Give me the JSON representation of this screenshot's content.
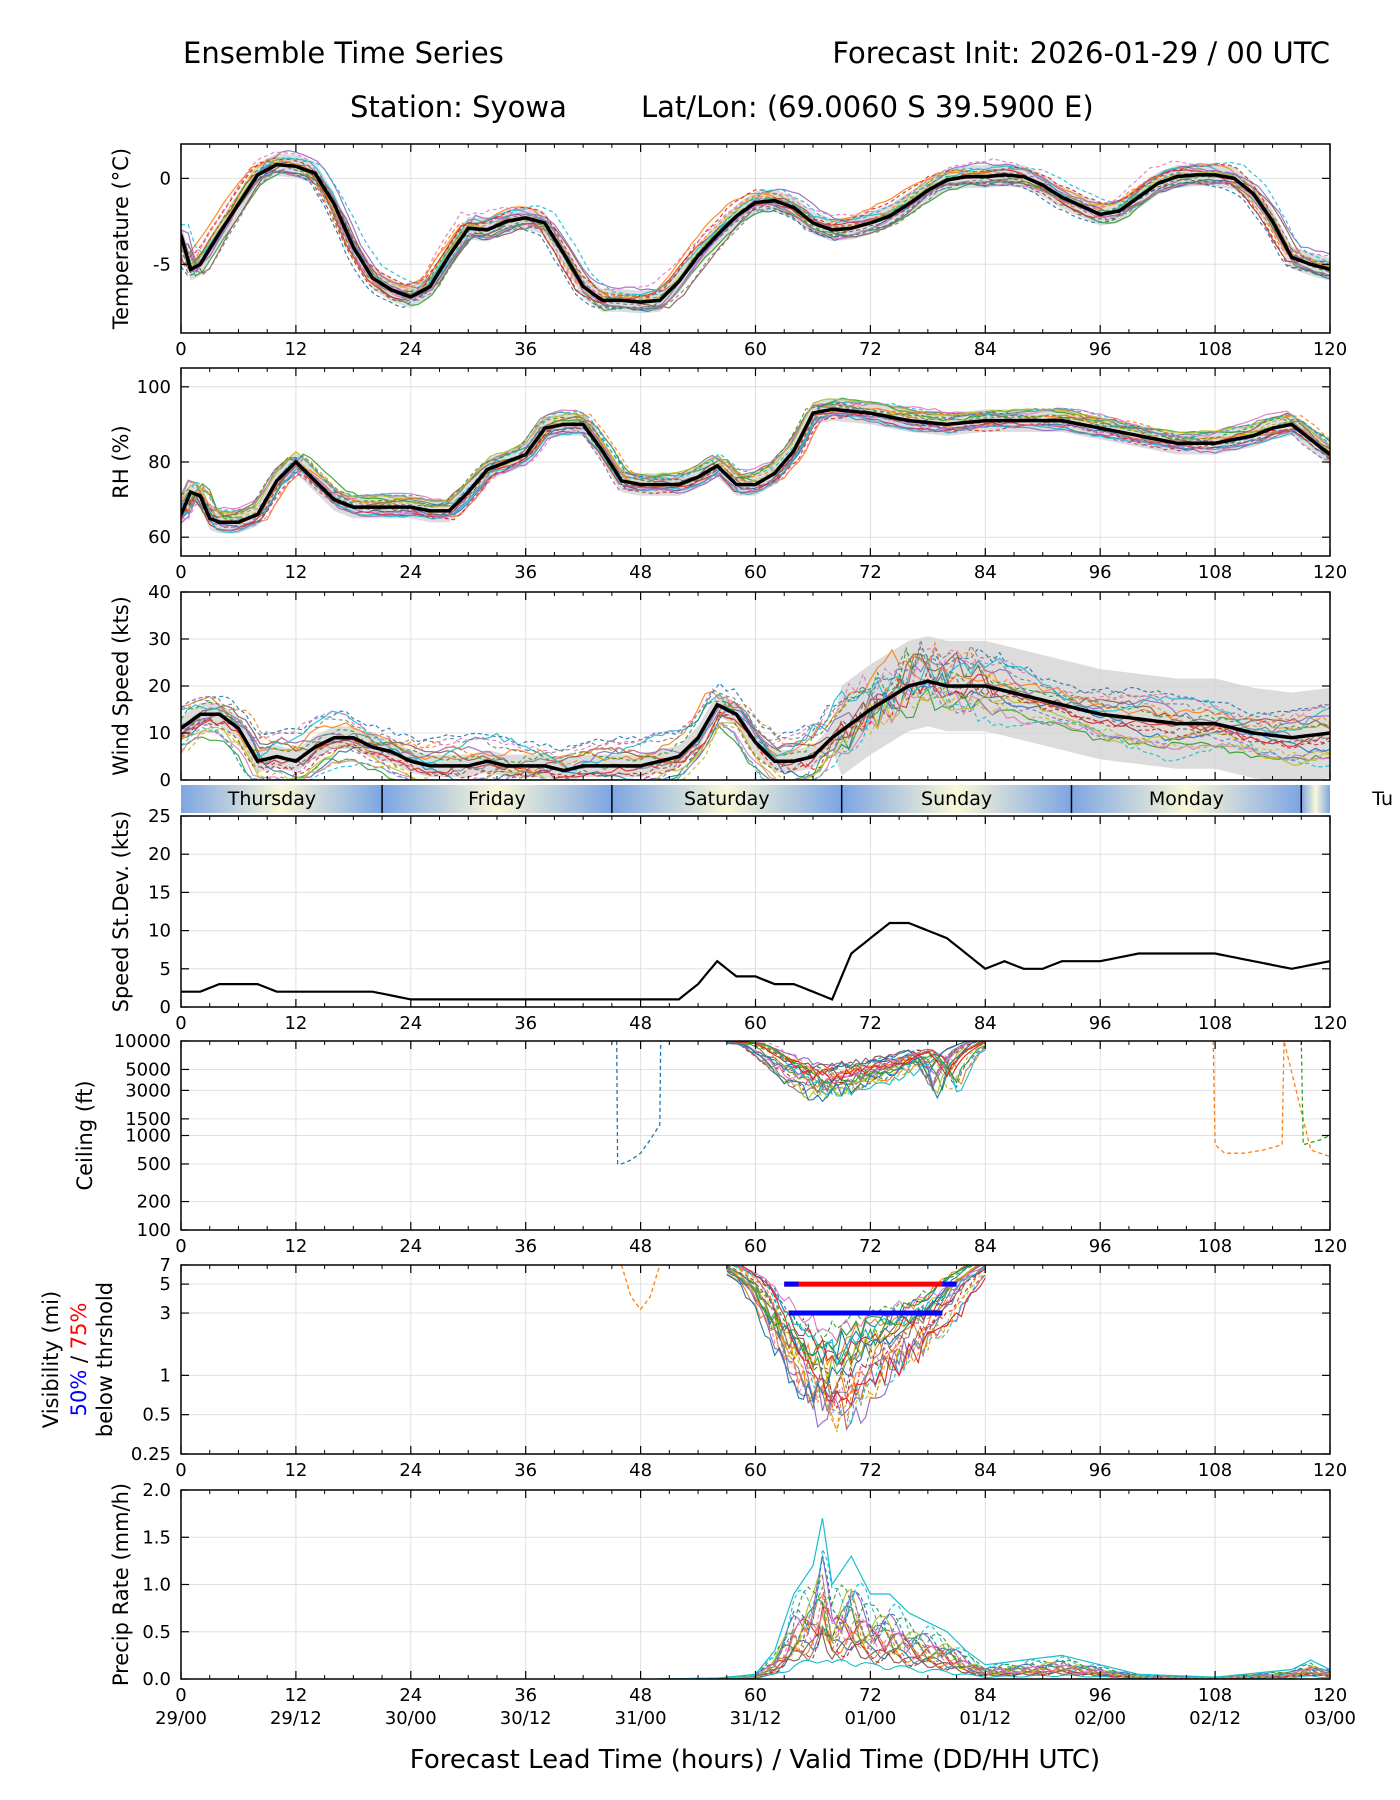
{
  "header": {
    "title_left": "Ensemble Time Series",
    "title_right": "Forecast Init: 2026-01-29 / 00 UTC",
    "station": "Station: Syowa",
    "latlon": "Lat/Lon: (69.0060 S 39.5900 E)"
  },
  "chart_data": {
    "type": "line",
    "x_range": [
      0,
      120
    ],
    "x_ticks": [
      0,
      12,
      24,
      36,
      48,
      60,
      72,
      84,
      96,
      108,
      120
    ],
    "x_tick_labels": [
      "0",
      "12",
      "24",
      "36",
      "48",
      "60",
      "72",
      "84",
      "96",
      "108",
      "120"
    ],
    "valid_time_labels": [
      "29/00",
      "29/12",
      "30/00",
      "30/12",
      "31/00",
      "31/12",
      "01/00",
      "01/12",
      "02/00",
      "02/12",
      "03/00"
    ],
    "xlabel": "Forecast Lead Time (hours) / Valid Time (DD/HH UTC)",
    "day_band": {
      "boundaries": [
        21,
        45,
        69,
        93,
        117
      ],
      "labels": [
        "Thursday",
        "Friday",
        "Saturday",
        "Sunday",
        "Monday",
        "Tu"
      ],
      "label_hours": [
        9.5,
        33,
        57,
        81,
        105,
        125.5
      ]
    },
    "panels": [
      {
        "id": "temperature",
        "ylabel": "Temperature (°C)",
        "ylim": [
          -9,
          2
        ],
        "y_ticks": [
          0,
          -5
        ],
        "y_tick_labels": [
          "0",
          "-5"
        ],
        "mean_series": {
          "name": "ensemble mean",
          "x": [
            0,
            1,
            2,
            4,
            6,
            8,
            10,
            12,
            14,
            16,
            18,
            20,
            22,
            24,
            26,
            28,
            30,
            32,
            34,
            36,
            38,
            40,
            42,
            44,
            46,
            48,
            50,
            52,
            54,
            56,
            58,
            60,
            62,
            64,
            66,
            68,
            70,
            72,
            74,
            76,
            78,
            80,
            82,
            84,
            86,
            88,
            90,
            92,
            94,
            96,
            98,
            100,
            102,
            104,
            106,
            108,
            110,
            112,
            114,
            116,
            118,
            120
          ],
          "y": [
            -3.3,
            -5.3,
            -5.0,
            -3.2,
            -1.5,
            0.2,
            0.8,
            0.7,
            0.3,
            -1.5,
            -4.0,
            -5.8,
            -6.5,
            -6.9,
            -6.3,
            -4.5,
            -2.9,
            -3.0,
            -2.5,
            -2.3,
            -2.6,
            -4.4,
            -6.3,
            -7.1,
            -7.1,
            -7.2,
            -7.1,
            -6.0,
            -4.5,
            -3.3,
            -2.2,
            -1.4,
            -1.3,
            -1.7,
            -2.6,
            -3.0,
            -2.9,
            -2.6,
            -2.2,
            -1.5,
            -0.7,
            -0.1,
            0.1,
            0.1,
            0.2,
            0.1,
            -0.4,
            -1.1,
            -1.6,
            -2.1,
            -1.9,
            -1.1,
            -0.3,
            0.1,
            0.2,
            0.2,
            0.0,
            -0.9,
            -2.5,
            -4.6,
            -5.0,
            -5.3
          ]
        },
        "spread_pct": 0.06
      },
      {
        "id": "rh",
        "ylabel": "RH (%)",
        "ylim": [
          55,
          105
        ],
        "y_ticks": [
          60,
          80,
          100
        ],
        "y_tick_labels": [
          "60",
          "80",
          "100"
        ],
        "mean_series": {
          "name": "ensemble mean",
          "x": [
            0,
            1,
            2,
            3,
            4,
            6,
            8,
            10,
            12,
            14,
            16,
            18,
            20,
            22,
            24,
            26,
            28,
            30,
            32,
            34,
            36,
            38,
            40,
            42,
            44,
            46,
            48,
            50,
            52,
            54,
            56,
            58,
            60,
            62,
            64,
            66,
            68,
            72,
            76,
            80,
            84,
            88,
            92,
            96,
            100,
            104,
            108,
            112,
            114,
            116,
            118,
            120
          ],
          "y": [
            66,
            72,
            71,
            65,
            64,
            64,
            66,
            75,
            80,
            75,
            70,
            68,
            68,
            68,
            68,
            67,
            67,
            72,
            78,
            80,
            82,
            89,
            90,
            90,
            83,
            75,
            74,
            74,
            74,
            76,
            79,
            74,
            74,
            77,
            83,
            93,
            94,
            93,
            91,
            90,
            91,
            91,
            91,
            89,
            87,
            85,
            85,
            87,
            89,
            90,
            86,
            82
          ]
        },
        "spread_pct": 0.06
      },
      {
        "id": "wind",
        "ylabel": "Wind Speed (kts)",
        "ylim": [
          0,
          40
        ],
        "y_ticks": [
          0,
          10,
          20,
          30,
          40
        ],
        "y_tick_labels": [
          "0",
          "10",
          "20",
          "30",
          "40"
        ],
        "mean_series": {
          "name": "ensemble mean",
          "x": [
            0,
            2,
            4,
            6,
            8,
            10,
            12,
            14,
            16,
            18,
            20,
            22,
            24,
            26,
            28,
            30,
            32,
            34,
            36,
            38,
            40,
            42,
            44,
            46,
            48,
            50,
            52,
            54,
            56,
            58,
            60,
            62,
            64,
            66,
            68,
            70,
            72,
            76,
            78,
            80,
            84,
            88,
            92,
            96,
            100,
            104,
            108,
            112,
            116,
            120
          ],
          "y": [
            11,
            14,
            14,
            11,
            4,
            5,
            4,
            7,
            9,
            9,
            7,
            6,
            4,
            3,
            3,
            3,
            4,
            3,
            3,
            3,
            2,
            3,
            3,
            3,
            3,
            4,
            5,
            9,
            16,
            14,
            8,
            4,
            4,
            5,
            9,
            12,
            15,
            20,
            21,
            20,
            20,
            18,
            16,
            14,
            13,
            12,
            12,
            10,
            9,
            10
          ]
        },
        "spread_pct": 0.15,
        "xtick_labels_hidden": true
      },
      {
        "id": "speed_sd",
        "ylabel": "Speed St.Dev. (kts)",
        "ylim": [
          0,
          25
        ],
        "y_ticks": [
          0,
          5,
          10,
          15,
          20,
          25
        ],
        "y_tick_labels": [
          "0",
          "5",
          "10",
          "15",
          "20",
          "25"
        ],
        "series": [
          {
            "name": "speed stdev",
            "x": [
              0,
              2,
              4,
              6,
              8,
              10,
              12,
              16,
              20,
              24,
              28,
              32,
              36,
              40,
              44,
              48,
              52,
              54,
              56,
              58,
              60,
              62,
              64,
              66,
              68,
              70,
              72,
              74,
              76,
              78,
              80,
              82,
              84,
              86,
              88,
              90,
              92,
              96,
              100,
              104,
              108,
              112,
              116,
              120
            ],
            "y": [
              2,
              2,
              3,
              3,
              3,
              2,
              2,
              2,
              2,
              1,
              1,
              1,
              1,
              1,
              1,
              1,
              1,
              3,
              6,
              4,
              4,
              3,
              3,
              2,
              1,
              7,
              9,
              11,
              11,
              10,
              9,
              7,
              5,
              6,
              5,
              5,
              6,
              6,
              7,
              7,
              7,
              6,
              5,
              6
            ]
          }
        ]
      },
      {
        "id": "ceiling",
        "ylabel": "Ceiling (ft)",
        "scale": "log",
        "ylim": [
          100,
          10000
        ],
        "y_ticks": [
          100,
          200,
          500,
          1000,
          1500,
          3000,
          5000,
          10000
        ],
        "y_tick_labels": [
          "100",
          "200",
          "500",
          "1000",
          "1500",
          "3000",
          "5000",
          "10000"
        ],
        "series": [
          {
            "name": "member dip 48h",
            "x": [
              45.5,
              45.6,
              46,
              47,
              48,
              49,
              50,
              50.1
            ],
            "y": [
              10000,
              500,
              500,
              550,
              650,
              900,
              1300,
              10000
            ]
          },
          {
            "name": "member dip 108h",
            "x": [
              107.8,
              108,
              109,
              111,
              113,
              115,
              115.2,
              118,
              120
            ],
            "y": [
              10000,
              800,
              650,
              650,
              700,
              800,
              10000,
              700,
              600
            ]
          },
          {
            "name": "member dip 117h",
            "x": [
              115.5,
              117,
              117.2,
              119,
              120
            ],
            "y": [
              10000,
              10000,
              800,
              900,
              1000
            ]
          },
          {
            "name": "cluster lower envelope",
            "x": [
              57,
              60,
              62,
              64,
              66,
              68,
              70,
              72,
              74,
              76,
              78,
              80,
              82,
              84
            ],
            "y": [
              10000,
              9000,
              6000,
              4000,
              2800,
              2600,
              3000,
              3500,
              4000,
              5000,
              6500,
              2500,
              7000,
              10000
            ]
          }
        ]
      },
      {
        "id": "visibility",
        "ylabel": "Visibility (mi)",
        "ylabel_threshold_50": "50%",
        "ylabel_threshold_sep": " / ",
        "ylabel_threshold_75": "75%",
        "ylabel_sub": "below thrshold",
        "scale": "log",
        "ylim": [
          0.25,
          7
        ],
        "y_ticks": [
          0.25,
          0.5,
          1,
          3,
          5,
          7
        ],
        "y_tick_labels": [
          "0.25",
          "0.5",
          "1",
          "3",
          "5",
          "7"
        ],
        "series": [
          {
            "name": "cluster lower envelope",
            "x": [
              57,
              60,
              62,
              64,
              66,
              68,
              70,
              72,
              74,
              76,
              78,
              80,
              82,
              84
            ],
            "y": [
              7,
              4.5,
              2,
              1,
              0.6,
              0.45,
              0.6,
              0.9,
              1.2,
              1.5,
              2,
              3,
              5,
              7
            ]
          },
          {
            "name": "member dip 48h",
            "x": [
              46,
              47,
              48,
              49,
              50
            ],
            "y": [
              7,
              4,
              3.2,
              4,
              7
            ]
          }
        ],
        "threshold_bars": [
          {
            "name": "5 mi 75% below",
            "color": "#ff0000",
            "x_start": 63,
            "x_end": 81,
            "y": 5
          },
          {
            "name": "3 mi 50% below",
            "color": "#0000ff",
            "x_start": 63.5,
            "x_end": 79.5,
            "y": 3
          }
        ]
      },
      {
        "id": "precip",
        "ylabel": "Precip Rate (mm/h)",
        "ylim": [
          0,
          2
        ],
        "y_ticks": [
          0,
          0.5,
          1.0,
          1.5,
          2.0
        ],
        "y_tick_labels": [
          "0.0",
          "0.5",
          "1.0",
          "1.5",
          "2.0"
        ],
        "series": [
          {
            "name": "member max",
            "x": [
              50,
              56,
              60,
              62,
              64,
              66,
              67,
              68,
              70,
              72,
              74,
              76,
              78,
              80,
              82,
              84,
              88,
              92,
              96,
              100,
              108,
              116,
              118,
              120
            ],
            "y": [
              0,
              0.01,
              0.05,
              0.3,
              0.9,
              1.2,
              1.7,
              1.0,
              1.3,
              0.9,
              0.9,
              0.7,
              0.6,
              0.5,
              0.3,
              0.15,
              0.2,
              0.25,
              0.15,
              0.05,
              0.02,
              0.1,
              0.2,
              0.1
            ]
          }
        ]
      }
    ]
  },
  "colors": {
    "mean": "#000000",
    "spread": "#d3d3d3",
    "grid": "#e0e0e0",
    "day_band_blue": "#7da5e3",
    "day_band_cream": "#faf8d7",
    "threshold_50": "#0000ff",
    "threshold_75": "#ff0000",
    "members": [
      "#1f77b4",
      "#ff7f0e",
      "#2ca02c",
      "#d62728",
      "#9467bd",
      "#8c564b",
      "#e377c2",
      "#7f7f7f",
      "#bcbd22",
      "#17becf"
    ]
  }
}
